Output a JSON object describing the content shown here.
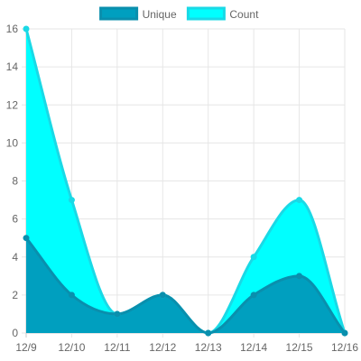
{
  "chart_data": {
    "type": "area",
    "categories": [
      "12/9",
      "12/10",
      "12/11",
      "12/12",
      "12/13",
      "12/14",
      "12/15",
      "12/16"
    ],
    "series": [
      {
        "name": "Unique",
        "values": [
          5,
          2,
          1,
          2,
          0,
          2,
          3,
          0
        ],
        "fill": "#009fbf",
        "stroke": "#0a8fad"
      },
      {
        "name": "Count",
        "values": [
          16,
          7,
          1,
          2,
          0,
          4,
          7,
          0
        ],
        "fill": "#00ffff",
        "stroke": "#1ad9e6"
      }
    ],
    "yticks": [
      "0",
      "2",
      "4",
      "6",
      "8",
      "10",
      "12",
      "14",
      "16"
    ],
    "ylim": [
      0,
      16
    ],
    "grid": true,
    "legend": "top-center",
    "title": "",
    "xlabel": "",
    "ylabel": ""
  }
}
